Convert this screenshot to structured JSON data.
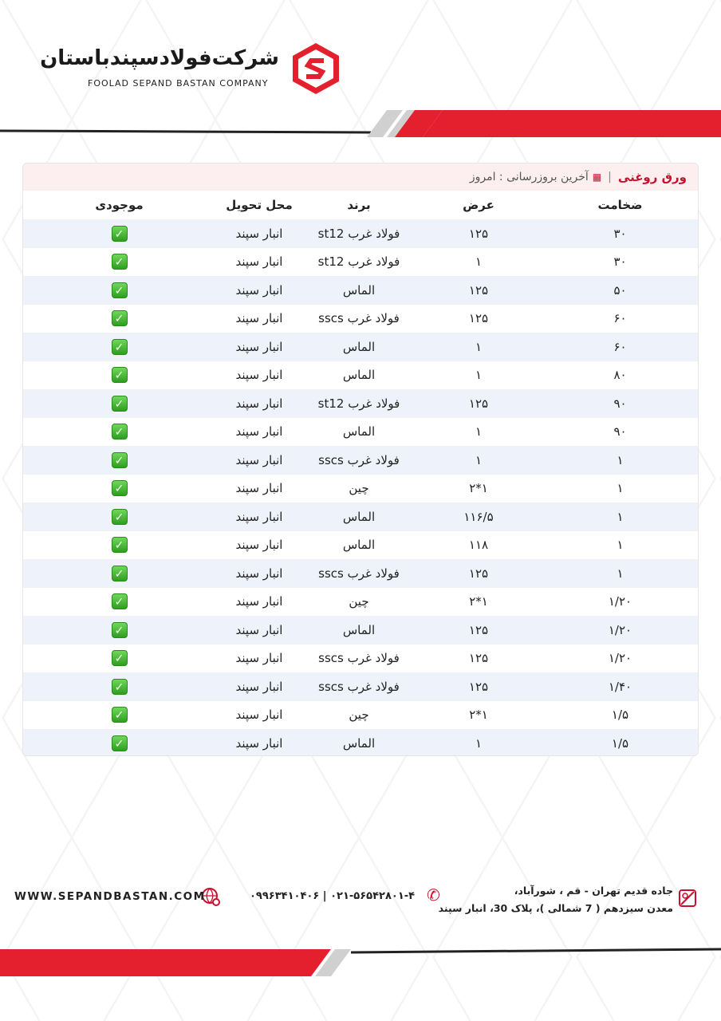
{
  "brand": {
    "name_fa": "شرکت‌فولادسپندباستان",
    "name_en": "FOOLAD SEPAND BASTAN COMPANY",
    "accent": "#e5202e"
  },
  "card": {
    "title": "ورق روغنی",
    "update_label": "آخرین بروزرسانی : امروز",
    "calendar_icon": "calendar-icon"
  },
  "columns": [
    "ضخامت",
    "عرض",
    "برند",
    "محل تحویل",
    "موجودی"
  ],
  "rows": [
    {
      "t": "۳۰",
      "w": "۱۲۵",
      "b": "فولاد غرب st12",
      "l": "انبار سپند",
      "s": "available"
    },
    {
      "t": "۳۰",
      "w": "۱",
      "b": "فولاد غرب st12",
      "l": "انبار سپند",
      "s": "available"
    },
    {
      "t": "۵۰",
      "w": "۱۲۵",
      "b": "الماس",
      "l": "انبار سپند",
      "s": "available"
    },
    {
      "t": "۶۰",
      "w": "۱۲۵",
      "b": "فولاد غرب sscs",
      "l": "انبار سپند",
      "s": "available"
    },
    {
      "t": "۶۰",
      "w": "۱",
      "b": "الماس",
      "l": "انبار سپند",
      "s": "available"
    },
    {
      "t": "۸۰",
      "w": "۱",
      "b": "الماس",
      "l": "انبار سپند",
      "s": "available"
    },
    {
      "t": "۹۰",
      "w": "۱۲۵",
      "b": "فولاد غرب st12",
      "l": "انبار سپند",
      "s": "available"
    },
    {
      "t": "۹۰",
      "w": "۱",
      "b": "الماس",
      "l": "انبار سپند",
      "s": "available"
    },
    {
      "t": "۱",
      "w": "۱",
      "b": "فولاد غرب sscs",
      "l": "انبار سپند",
      "s": "available"
    },
    {
      "t": "۱",
      "w": "۱*۲",
      "b": "چین",
      "l": "انبار سپند",
      "s": "available"
    },
    {
      "t": "۱",
      "w": "۱۱۶/۵",
      "b": "الماس",
      "l": "انبار سپند",
      "s": "available"
    },
    {
      "t": "۱",
      "w": "۱۱۸",
      "b": "الماس",
      "l": "انبار سپند",
      "s": "available"
    },
    {
      "t": "۱",
      "w": "۱۲۵",
      "b": "فولاد غرب sscs",
      "l": "انبار سپند",
      "s": "available"
    },
    {
      "t": "۱/۲۰",
      "w": "۱*۲",
      "b": "چین",
      "l": "انبار سپند",
      "s": "available"
    },
    {
      "t": "۱/۲۰",
      "w": "۱۲۵",
      "b": "الماس",
      "l": "انبار سپند",
      "s": "available"
    },
    {
      "t": "۱/۲۰",
      "w": "۱۲۵",
      "b": "فولاد غرب sscs",
      "l": "انبار سپند",
      "s": "available"
    },
    {
      "t": "۱/۴۰",
      "w": "۱۲۵",
      "b": "فولاد غرب sscs",
      "l": "انبار سپند",
      "s": "available"
    },
    {
      "t": "۱/۵",
      "w": "۱*۲",
      "b": "چین",
      "l": "انبار سپند",
      "s": "available"
    },
    {
      "t": "۱/۵",
      "w": "۱",
      "b": "الماس",
      "l": "انبار سپند",
      "s": "available"
    }
  ],
  "footer": {
    "address_line1": "جاده قدیم تهران - قم ، شورآباد،",
    "address_line2": "معدن سیزدهم ( 7 شمالی )، پلاک 30، انبار سپند",
    "phone": "۰۹۹۶۳۴۱۰۴۰۶ | ۰۲۱-۵۶۵۴۲۸۰۱-۴",
    "website": "WWW.SEPANDBASTAN.COM"
  }
}
